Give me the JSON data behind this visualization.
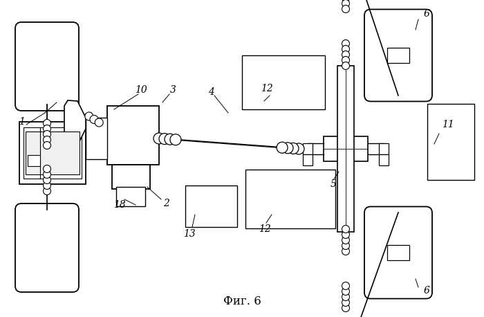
{
  "title": "Фиг. 6",
  "bg_color": "#ffffff",
  "line_color": "#000000",
  "lw_main": 1.2,
  "lw_thin": 0.7,
  "label_fs": 10
}
